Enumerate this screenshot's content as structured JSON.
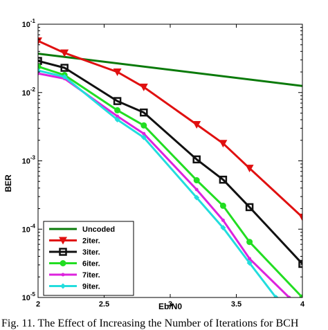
{
  "caption": "Fig. 11. The Effect of Increasing the Number of Iterations for BCH",
  "chart_data": {
    "type": "line",
    "xlabel": "Eb/N0",
    "ylabel": "BER",
    "xlim": [
      2,
      4
    ],
    "ylim": [
      1e-05,
      0.1
    ],
    "yscale": "log",
    "xticks": [
      "2",
      "2.5",
      "3",
      "3.5",
      "4"
    ],
    "yticks": [
      "10^-5",
      "10^-4",
      "10^-3",
      "10^-2",
      "10^-1"
    ],
    "grid": false,
    "legend_position": "bottom-left",
    "series": [
      {
        "name": "Uncoded",
        "color": "#0a7a0a",
        "marker": "none",
        "x": [
          2,
          4
        ],
        "y": [
          0.037,
          0.0125
        ]
      },
      {
        "name": "2iter.",
        "color": "#e01010",
        "marker": "triangle-down",
        "x": [
          2,
          2.2,
          2.6,
          2.8,
          3.2,
          3.4,
          3.6,
          4
        ],
        "y": [
          0.057,
          0.038,
          0.02,
          0.012,
          0.0034,
          0.0018,
          0.00078,
          0.00015
        ]
      },
      {
        "name": "3iter.",
        "color": "#111111",
        "marker": "square",
        "x": [
          2,
          2.2,
          2.6,
          2.8,
          3.2,
          3.4,
          3.6,
          4
        ],
        "y": [
          0.029,
          0.023,
          0.0075,
          0.0051,
          0.00105,
          0.00053,
          0.00021,
          3.1e-05
        ]
      },
      {
        "name": "6iter.",
        "color": "#22dd22",
        "marker": "circle",
        "x": [
          2,
          2.2,
          2.6,
          2.8,
          3.2,
          3.4,
          3.6,
          4
        ],
        "y": [
          0.024,
          0.018,
          0.0055,
          0.0033,
          0.00052,
          0.00022,
          6.5e-05,
          1e-05
        ]
      },
      {
        "name": "7iter.",
        "color": "#dd22dd",
        "marker": "dot",
        "x": [
          2,
          2.2,
          2.6,
          2.8,
          3.2,
          3.4,
          3.6,
          3.9
        ],
        "y": [
          0.019,
          0.016,
          0.0045,
          0.0025,
          0.00038,
          0.000135,
          3.7e-05,
          1e-05
        ]
      },
      {
        "name": "9iter.",
        "color": "#22dddd",
        "marker": "diamond",
        "x": [
          2,
          2.2,
          2.6,
          2.8,
          3.2,
          3.4,
          3.6,
          3.8
        ],
        "y": [
          0.021,
          0.017,
          0.004,
          0.0022,
          0.00029,
          0.000105,
          3.2e-05,
          1e-05
        ]
      }
    ]
  }
}
